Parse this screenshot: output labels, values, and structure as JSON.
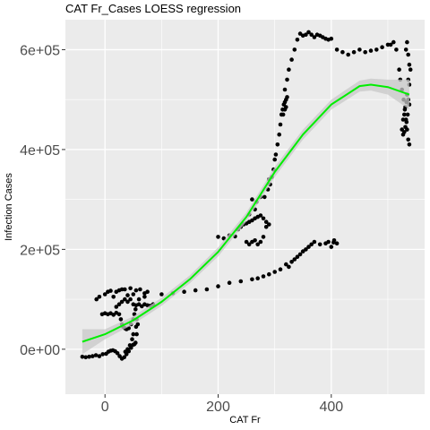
{
  "chart_data": {
    "type": "scatter",
    "title": "CAT Fr_Cases LOESS regression",
    "xlabel": "CAT Fr",
    "ylabel": "Infection Cases",
    "xlim": [
      -70,
      565
    ],
    "ylim": [
      -90000,
      660000
    ],
    "x_ticks": [
      0,
      200,
      400
    ],
    "x_tick_labels": [
      "0",
      "200",
      "400"
    ],
    "y_ticks": [
      0,
      200000,
      400000,
      600000
    ],
    "y_tick_labels": [
      "0e+00",
      "2e+05",
      "4e+05",
      "6e+05"
    ],
    "grid": true,
    "legend": "none",
    "colors": {
      "points": "#000000",
      "fit_line": "#00ee00",
      "ribbon": "#c8c8c8",
      "panel": "#ebebeb",
      "grid": "#ffffff"
    },
    "points": [
      [
        -40,
        -15000
      ],
      [
        -34,
        -16000
      ],
      [
        -28,
        -15000
      ],
      [
        -22,
        -14000
      ],
      [
        -16,
        -12000
      ],
      [
        -10,
        -14000
      ],
      [
        -4,
        -10000
      ],
      [
        2,
        -9000
      ],
      [
        6,
        -5000
      ],
      [
        10,
        -3000
      ],
      [
        14,
        -2000
      ],
      [
        18,
        -4000
      ],
      [
        22,
        -8000
      ],
      [
        26,
        -14000
      ],
      [
        30,
        -19000
      ],
      [
        34,
        -16000
      ],
      [
        38,
        -10000
      ],
      [
        42,
        -4000
      ],
      [
        46,
        3000
      ],
      [
        50,
        9000
      ],
      [
        54,
        13000
      ],
      [
        36,
        -5000
      ],
      [
        40,
        0
      ],
      [
        44,
        8000
      ],
      [
        48,
        20000
      ],
      [
        50,
        30000
      ],
      [
        52,
        10000
      ],
      [
        -5,
        70000
      ],
      [
        0,
        72000
      ],
      [
        5,
        70000
      ],
      [
        10,
        72000
      ],
      [
        15,
        69000
      ],
      [
        20,
        73000
      ],
      [
        25,
        70000
      ],
      [
        28,
        60000
      ],
      [
        30,
        50000
      ],
      [
        32,
        45000
      ],
      [
        35,
        42000
      ],
      [
        38,
        40000
      ],
      [
        42,
        42000
      ],
      [
        46,
        50000
      ],
      [
        50,
        60000
      ],
      [
        52,
        70000
      ],
      [
        54,
        80000
      ],
      [
        56,
        60000
      ],
      [
        58,
        50000
      ],
      [
        55,
        45000
      ],
      [
        56,
        30000
      ],
      [
        20,
        85000
      ],
      [
        25,
        90000
      ],
      [
        30,
        95000
      ],
      [
        35,
        100000
      ],
      [
        40,
        95000
      ],
      [
        45,
        100000
      ],
      [
        50,
        90000
      ],
      [
        55,
        88000
      ],
      [
        60,
        90000
      ],
      [
        65,
        86000
      ],
      [
        70,
        90000
      ],
      [
        75,
        88000
      ],
      [
        80,
        87000
      ],
      [
        85,
        90000
      ],
      [
        60,
        100000
      ],
      [
        70,
        105000
      ],
      [
        50,
        110000
      ],
      [
        40,
        108000
      ],
      [
        30,
        120000
      ],
      [
        20,
        115000
      ],
      [
        15,
        105000
      ],
      [
        -15,
        100000
      ],
      [
        -10,
        105000
      ],
      [
        0,
        110000
      ],
      [
        5,
        115000
      ],
      [
        10,
        117000
      ],
      [
        25,
        118000
      ],
      [
        35,
        120000
      ],
      [
        45,
        122000
      ],
      [
        55,
        118000
      ],
      [
        62,
        120000
      ],
      [
        70,
        112000
      ],
      [
        75,
        115000
      ],
      [
        100,
        110000
      ],
      [
        120,
        112000
      ],
      [
        140,
        115000
      ],
      [
        160,
        118000
      ],
      [
        180,
        120000
      ],
      [
        200,
        126000
      ],
      [
        220,
        133000
      ],
      [
        240,
        136000
      ],
      [
        260,
        140000
      ],
      [
        270,
        142000
      ],
      [
        280,
        146000
      ],
      [
        290,
        150000
      ],
      [
        300,
        155000
      ],
      [
        310,
        160000
      ],
      [
        320,
        170000
      ],
      [
        325,
        165000
      ],
      [
        330,
        175000
      ],
      [
        335,
        180000
      ],
      [
        340,
        185000
      ],
      [
        345,
        190000
      ],
      [
        350,
        196000
      ],
      [
        355,
        200000
      ],
      [
        360,
        205000
      ],
      [
        365,
        210000
      ],
      [
        370,
        215000
      ],
      [
        380,
        210000
      ],
      [
        390,
        212000
      ],
      [
        395,
        215000
      ],
      [
        400,
        205000
      ],
      [
        405,
        218000
      ],
      [
        410,
        212000
      ],
      [
        404,
        214000
      ],
      [
        200,
        225000
      ],
      [
        210,
        222000
      ],
      [
        220,
        228000
      ],
      [
        230,
        226000
      ],
      [
        235,
        240000
      ],
      [
        240,
        245000
      ],
      [
        245,
        250000
      ],
      [
        250,
        252000
      ],
      [
        255,
        255000
      ],
      [
        260,
        258000
      ],
      [
        265,
        262000
      ],
      [
        270,
        265000
      ],
      [
        275,
        268000
      ],
      [
        280,
        262000
      ],
      [
        285,
        255000
      ],
      [
        290,
        250000
      ],
      [
        250,
        215000
      ],
      [
        255,
        210000
      ],
      [
        260,
        215000
      ],
      [
        265,
        218000
      ],
      [
        270,
        210000
      ],
      [
        275,
        215000
      ],
      [
        280,
        225000
      ],
      [
        285,
        245000
      ],
      [
        255,
        270000
      ],
      [
        265,
        280000
      ],
      [
        260,
        300000
      ],
      [
        268,
        295000
      ],
      [
        275,
        305000
      ],
      [
        282,
        305000
      ],
      [
        288,
        320000
      ],
      [
        292,
        330000
      ],
      [
        290,
        340000
      ],
      [
        295,
        345000
      ],
      [
        298,
        360000
      ],
      [
        300,
        380000
      ],
      [
        302,
        390000
      ],
      [
        305,
        410000
      ],
      [
        308,
        430000
      ],
      [
        310,
        450000
      ],
      [
        312,
        470000
      ],
      [
        314,
        480000
      ],
      [
        316,
        490000
      ],
      [
        318,
        495000
      ],
      [
        320,
        500000
      ],
      [
        322,
        505000
      ],
      [
        320,
        485000
      ],
      [
        318,
        480000
      ],
      [
        315,
        470000
      ],
      [
        318,
        520000
      ],
      [
        322,
        540000
      ],
      [
        325,
        560000
      ],
      [
        330,
        580000
      ],
      [
        335,
        600000
      ],
      [
        340,
        620000
      ],
      [
        345,
        632000
      ],
      [
        350,
        628000
      ],
      [
        355,
        630000
      ],
      [
        360,
        635000
      ],
      [
        365,
        630000
      ],
      [
        370,
        625000
      ],
      [
        375,
        630000
      ],
      [
        380,
        628000
      ],
      [
        385,
        625000
      ],
      [
        390,
        622000
      ],
      [
        395,
        620000
      ],
      [
        400,
        622000
      ],
      [
        410,
        600000
      ],
      [
        420,
        595000
      ],
      [
        430,
        590000
      ],
      [
        440,
        595000
      ],
      [
        450,
        600000
      ],
      [
        460,
        595000
      ],
      [
        470,
        598000
      ],
      [
        480,
        600000
      ],
      [
        490,
        605000
      ],
      [
        500,
        610000
      ],
      [
        505,
        610000
      ],
      [
        510,
        615000
      ],
      [
        515,
        600000
      ],
      [
        520,
        560000
      ],
      [
        522,
        540000
      ],
      [
        525,
        520000
      ],
      [
        528,
        500000
      ],
      [
        530,
        480000
      ],
      [
        532,
        460000
      ],
      [
        534,
        440000
      ],
      [
        536,
        420000
      ],
      [
        538,
        410000
      ],
      [
        532,
        600000
      ],
      [
        534,
        615000
      ],
      [
        536,
        590000
      ],
      [
        538,
        570000
      ],
      [
        540,
        560000
      ],
      [
        536,
        540000
      ],
      [
        538,
        530000
      ],
      [
        534,
        510000
      ],
      [
        536,
        500000
      ],
      [
        538,
        490000
      ],
      [
        535,
        470000
      ],
      [
        533,
        455000
      ],
      [
        531,
        445000
      ],
      [
        529,
        435000
      ],
      [
        527,
        430000
      ],
      [
        525,
        440000
      ],
      [
        527,
        460000
      ],
      [
        529,
        470000
      ],
      [
        531,
        485000
      ],
      [
        533,
        495000
      ]
    ],
    "fit_line": [
      [
        -40,
        15000
      ],
      [
        0,
        30000
      ],
      [
        50,
        58000
      ],
      [
        100,
        95000
      ],
      [
        150,
        140000
      ],
      [
        200,
        195000
      ],
      [
        250,
        265000
      ],
      [
        300,
        355000
      ],
      [
        350,
        430000
      ],
      [
        400,
        490000
      ],
      [
        450,
        527000
      ],
      [
        470,
        530000
      ],
      [
        500,
        525000
      ],
      [
        538,
        510000
      ]
    ],
    "ribbon": [
      [
        -40,
        -10000,
        40000
      ],
      [
        0,
        20000,
        40000
      ],
      [
        50,
        50000,
        66000
      ],
      [
        100,
        87000,
        103000
      ],
      [
        150,
        132000,
        148000
      ],
      [
        200,
        186000,
        204000
      ],
      [
        250,
        256000,
        274000
      ],
      [
        300,
        345000,
        365000
      ],
      [
        350,
        420000,
        440000
      ],
      [
        400,
        480000,
        500000
      ],
      [
        450,
        516000,
        538000
      ],
      [
        470,
        518000,
        542000
      ],
      [
        500,
        510000,
        540000
      ],
      [
        538,
        480000,
        540000
      ]
    ]
  }
}
